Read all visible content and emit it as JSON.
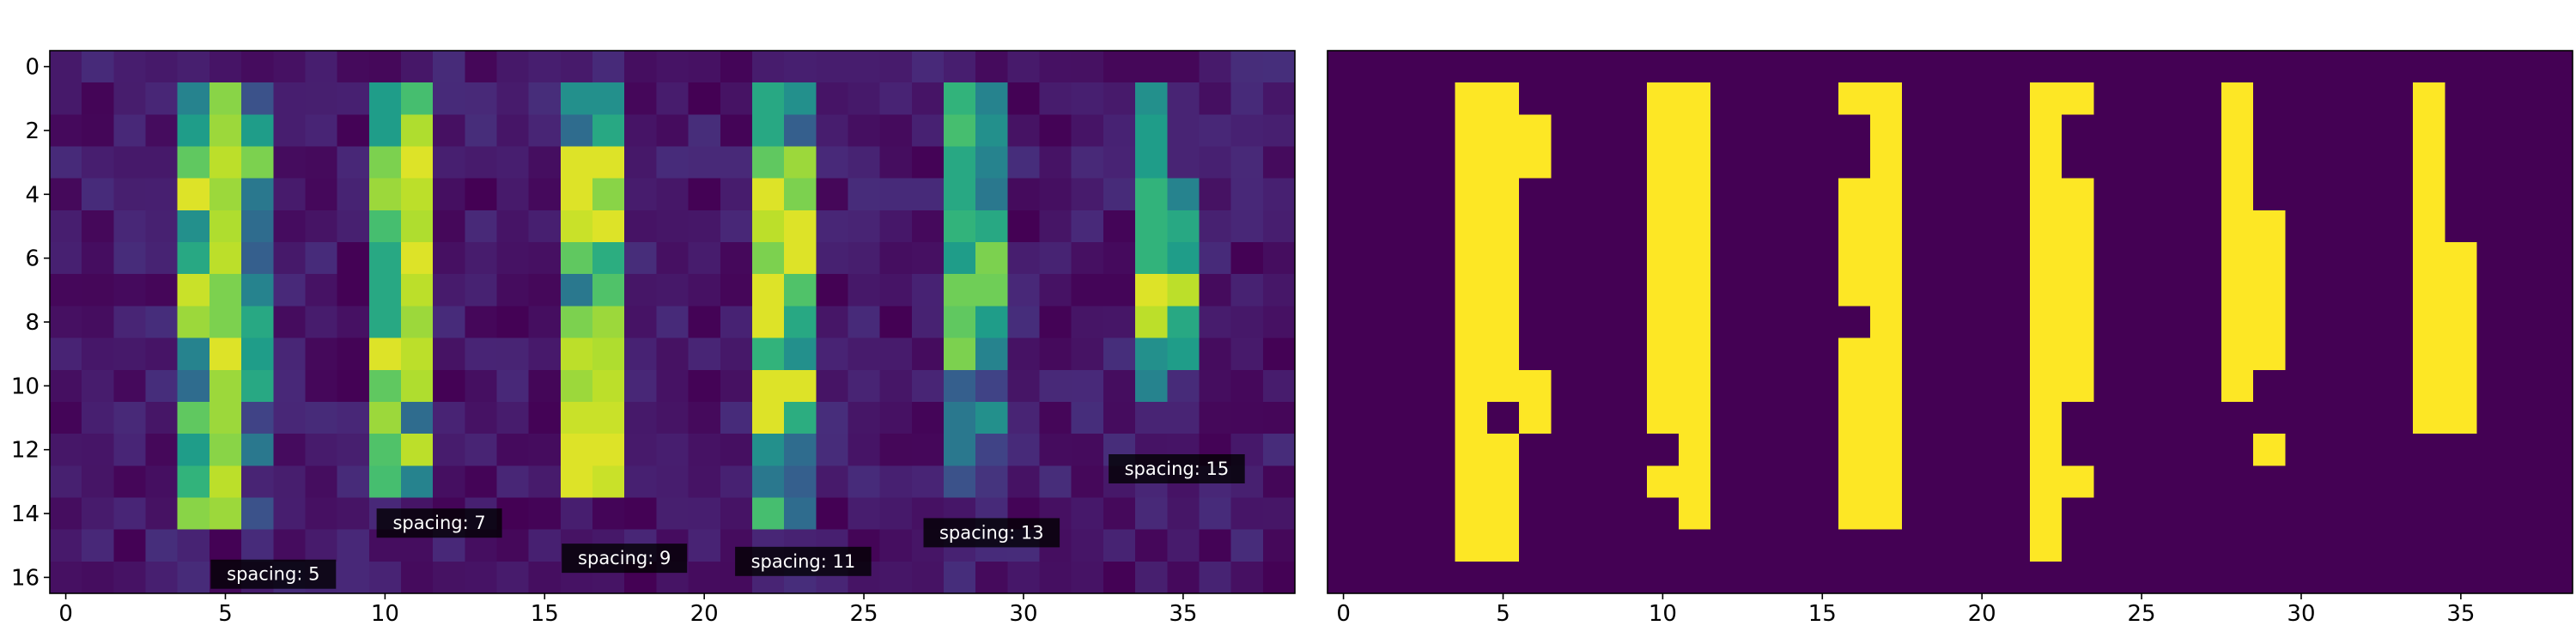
{
  "figure": {
    "background": "#ffffff"
  },
  "chart_data": [
    {
      "type": "heatmap",
      "panel": "left",
      "colormap": "viridis",
      "vmin": 0,
      "vmax": 1,
      "rows": 17,
      "cols": 39,
      "xlim": [
        -0.5,
        38.5
      ],
      "ylim": [
        16.5,
        -0.5
      ],
      "xticks": [
        0,
        5,
        10,
        15,
        20,
        25,
        30,
        35
      ],
      "yticks": [
        0,
        2,
        4,
        6,
        8,
        10,
        12,
        14,
        16
      ],
      "background_noise": [
        0.0,
        0.13
      ],
      "stripes": [
        {
          "cols": [
            4,
            5,
            6
          ],
          "rows": [
            1,
            14
          ],
          "values": [
            [
              0.45,
              0.82,
              0.25
            ],
            [
              0.55,
              0.85,
              0.55
            ],
            [
              0.75,
              0.9,
              0.8
            ],
            [
              0.95,
              0.85,
              0.4
            ],
            [
              0.5,
              0.88,
              0.35
            ],
            [
              0.6,
              0.9,
              0.3
            ],
            [
              0.92,
              0.8,
              0.45
            ],
            [
              0.85,
              0.8,
              0.6
            ],
            [
              0.45,
              0.95,
              0.55
            ],
            [
              0.35,
              0.85,
              0.6
            ],
            [
              0.75,
              0.85,
              0.2
            ],
            [
              0.55,
              0.82,
              0.4
            ],
            [
              0.65,
              0.9,
              0.1
            ],
            [
              0.82,
              0.85,
              0.25
            ]
          ]
        },
        {
          "cols": [
            10,
            11
          ],
          "rows": [
            1,
            13
          ],
          "values": [
            [
              0.55,
              0.7
            ],
            [
              0.55,
              0.88
            ],
            [
              0.8,
              0.95
            ],
            [
              0.85,
              0.9
            ],
            [
              0.7,
              0.88
            ],
            [
              0.6,
              0.95
            ],
            [
              0.6,
              0.9
            ],
            [
              0.6,
              0.85
            ],
            [
              0.95,
              0.9
            ],
            [
              0.75,
              0.88
            ],
            [
              0.85,
              0.35
            ],
            [
              0.72,
              0.9
            ],
            [
              0.7,
              0.45
            ]
          ]
        },
        {
          "cols": [
            16,
            17
          ],
          "rows": [
            1,
            13
          ],
          "values": [
            [
              0.5,
              0.5
            ],
            [
              0.35,
              0.6
            ],
            [
              0.95,
              0.95
            ],
            [
              0.95,
              0.82
            ],
            [
              0.92,
              0.95
            ],
            [
              0.75,
              0.62
            ],
            [
              0.4,
              0.72
            ],
            [
              0.8,
              0.85
            ],
            [
              0.9,
              0.88
            ],
            [
              0.85,
              0.9
            ],
            [
              0.92,
              0.92
            ],
            [
              0.95,
              0.95
            ],
            [
              0.95,
              0.92
            ]
          ]
        },
        {
          "cols": [
            22,
            23
          ],
          "rows": [
            1,
            14
          ],
          "values": [
            [
              0.6,
              0.5
            ],
            [
              0.6,
              0.3
            ],
            [
              0.75,
              0.85
            ],
            [
              0.95,
              0.8
            ],
            [
              0.9,
              0.95
            ],
            [
              0.8,
              0.95
            ],
            [
              0.95,
              0.72
            ],
            [
              0.95,
              0.6
            ],
            [
              0.65,
              0.5
            ],
            [
              0.95,
              0.95
            ],
            [
              0.95,
              0.62
            ],
            [
              0.5,
              0.35
            ],
            [
              0.4,
              0.3
            ],
            [
              0.7,
              0.35
            ]
          ]
        },
        {
          "cols": [
            28,
            29
          ],
          "rows": [
            1,
            13
          ],
          "values": [
            [
              0.65,
              0.45
            ],
            [
              0.7,
              0.5
            ],
            [
              0.6,
              0.45
            ],
            [
              0.6,
              0.4
            ],
            [
              0.65,
              0.6
            ],
            [
              0.55,
              0.8
            ],
            [
              0.78,
              0.78
            ],
            [
              0.75,
              0.55
            ],
            [
              0.8,
              0.45
            ],
            [
              0.3,
              0.2
            ],
            [
              0.4,
              0.5
            ],
            [
              0.4,
              0.2
            ],
            [
              0.25,
              0.15
            ]
          ]
        },
        {
          "cols": [
            34,
            35
          ],
          "rows": [
            1,
            11
          ],
          "values": [
            [
              0.5,
              0.1
            ],
            [
              0.55,
              0.1
            ],
            [
              0.55,
              0.1
            ],
            [
              0.65,
              0.45
            ],
            [
              0.65,
              0.6
            ],
            [
              0.65,
              0.55
            ],
            [
              0.95,
              0.9
            ],
            [
              0.9,
              0.6
            ],
            [
              0.5,
              0.55
            ],
            [
              0.45,
              0.12
            ],
            [
              0.1,
              0.1
            ]
          ]
        }
      ],
      "annotations": [
        {
          "text": "spacing: 5",
          "x": 6.5,
          "y": 15.9
        },
        {
          "text": "spacing: 7",
          "x": 11.7,
          "y": 14.3
        },
        {
          "text": "spacing: 9",
          "x": 17.5,
          "y": 15.4
        },
        {
          "text": "spacing: 11",
          "x": 23.1,
          "y": 15.5
        },
        {
          "text": "spacing: 13",
          "x": 29.0,
          "y": 14.6
        },
        {
          "text": "spacing: 15",
          "x": 34.8,
          "y": 12.6
        }
      ],
      "xlabel": "",
      "ylabel": "",
      "title": ""
    },
    {
      "type": "heatmap",
      "panel": "right",
      "colormap": "binary (viridis endpoints)",
      "low_color": "#440154",
      "high_color": "#fde725",
      "rows": 17,
      "cols": 39,
      "xlim": [
        -0.5,
        38.5
      ],
      "ylim": [
        16.5,
        -0.5
      ],
      "xticks": [
        0,
        5,
        10,
        15,
        20,
        25,
        30,
        35
      ],
      "on_cells_by_row": [
        [],
        [
          4,
          5,
          10,
          11,
          16,
          17,
          22,
          23,
          28,
          34
        ],
        [
          4,
          5,
          6,
          10,
          11,
          17,
          22,
          28,
          34
        ],
        [
          4,
          5,
          6,
          10,
          11,
          17,
          22,
          28,
          34
        ],
        [
          4,
          5,
          10,
          11,
          16,
          17,
          22,
          23,
          28,
          34
        ],
        [
          4,
          5,
          10,
          11,
          16,
          17,
          22,
          23,
          28,
          29,
          34
        ],
        [
          4,
          5,
          10,
          11,
          16,
          17,
          22,
          23,
          28,
          29,
          34,
          35
        ],
        [
          4,
          5,
          10,
          11,
          16,
          17,
          22,
          23,
          28,
          29,
          34,
          35
        ],
        [
          4,
          5,
          10,
          11,
          17,
          22,
          23,
          28,
          29,
          34,
          35
        ],
        [
          4,
          5,
          10,
          11,
          16,
          17,
          22,
          23,
          28,
          29,
          34,
          35
        ],
        [
          4,
          5,
          6,
          10,
          11,
          16,
          17,
          22,
          23,
          28,
          34,
          35
        ],
        [
          4,
          6,
          10,
          11,
          16,
          17,
          22,
          34,
          35
        ],
        [
          4,
          5,
          11,
          16,
          17,
          22,
          29
        ],
        [
          4,
          5,
          10,
          11,
          16,
          17,
          22,
          23
        ],
        [
          4,
          5,
          11,
          16,
          17,
          22
        ],
        [
          4,
          5,
          22
        ],
        []
      ],
      "xlabel": "",
      "ylabel": "",
      "title": ""
    }
  ]
}
